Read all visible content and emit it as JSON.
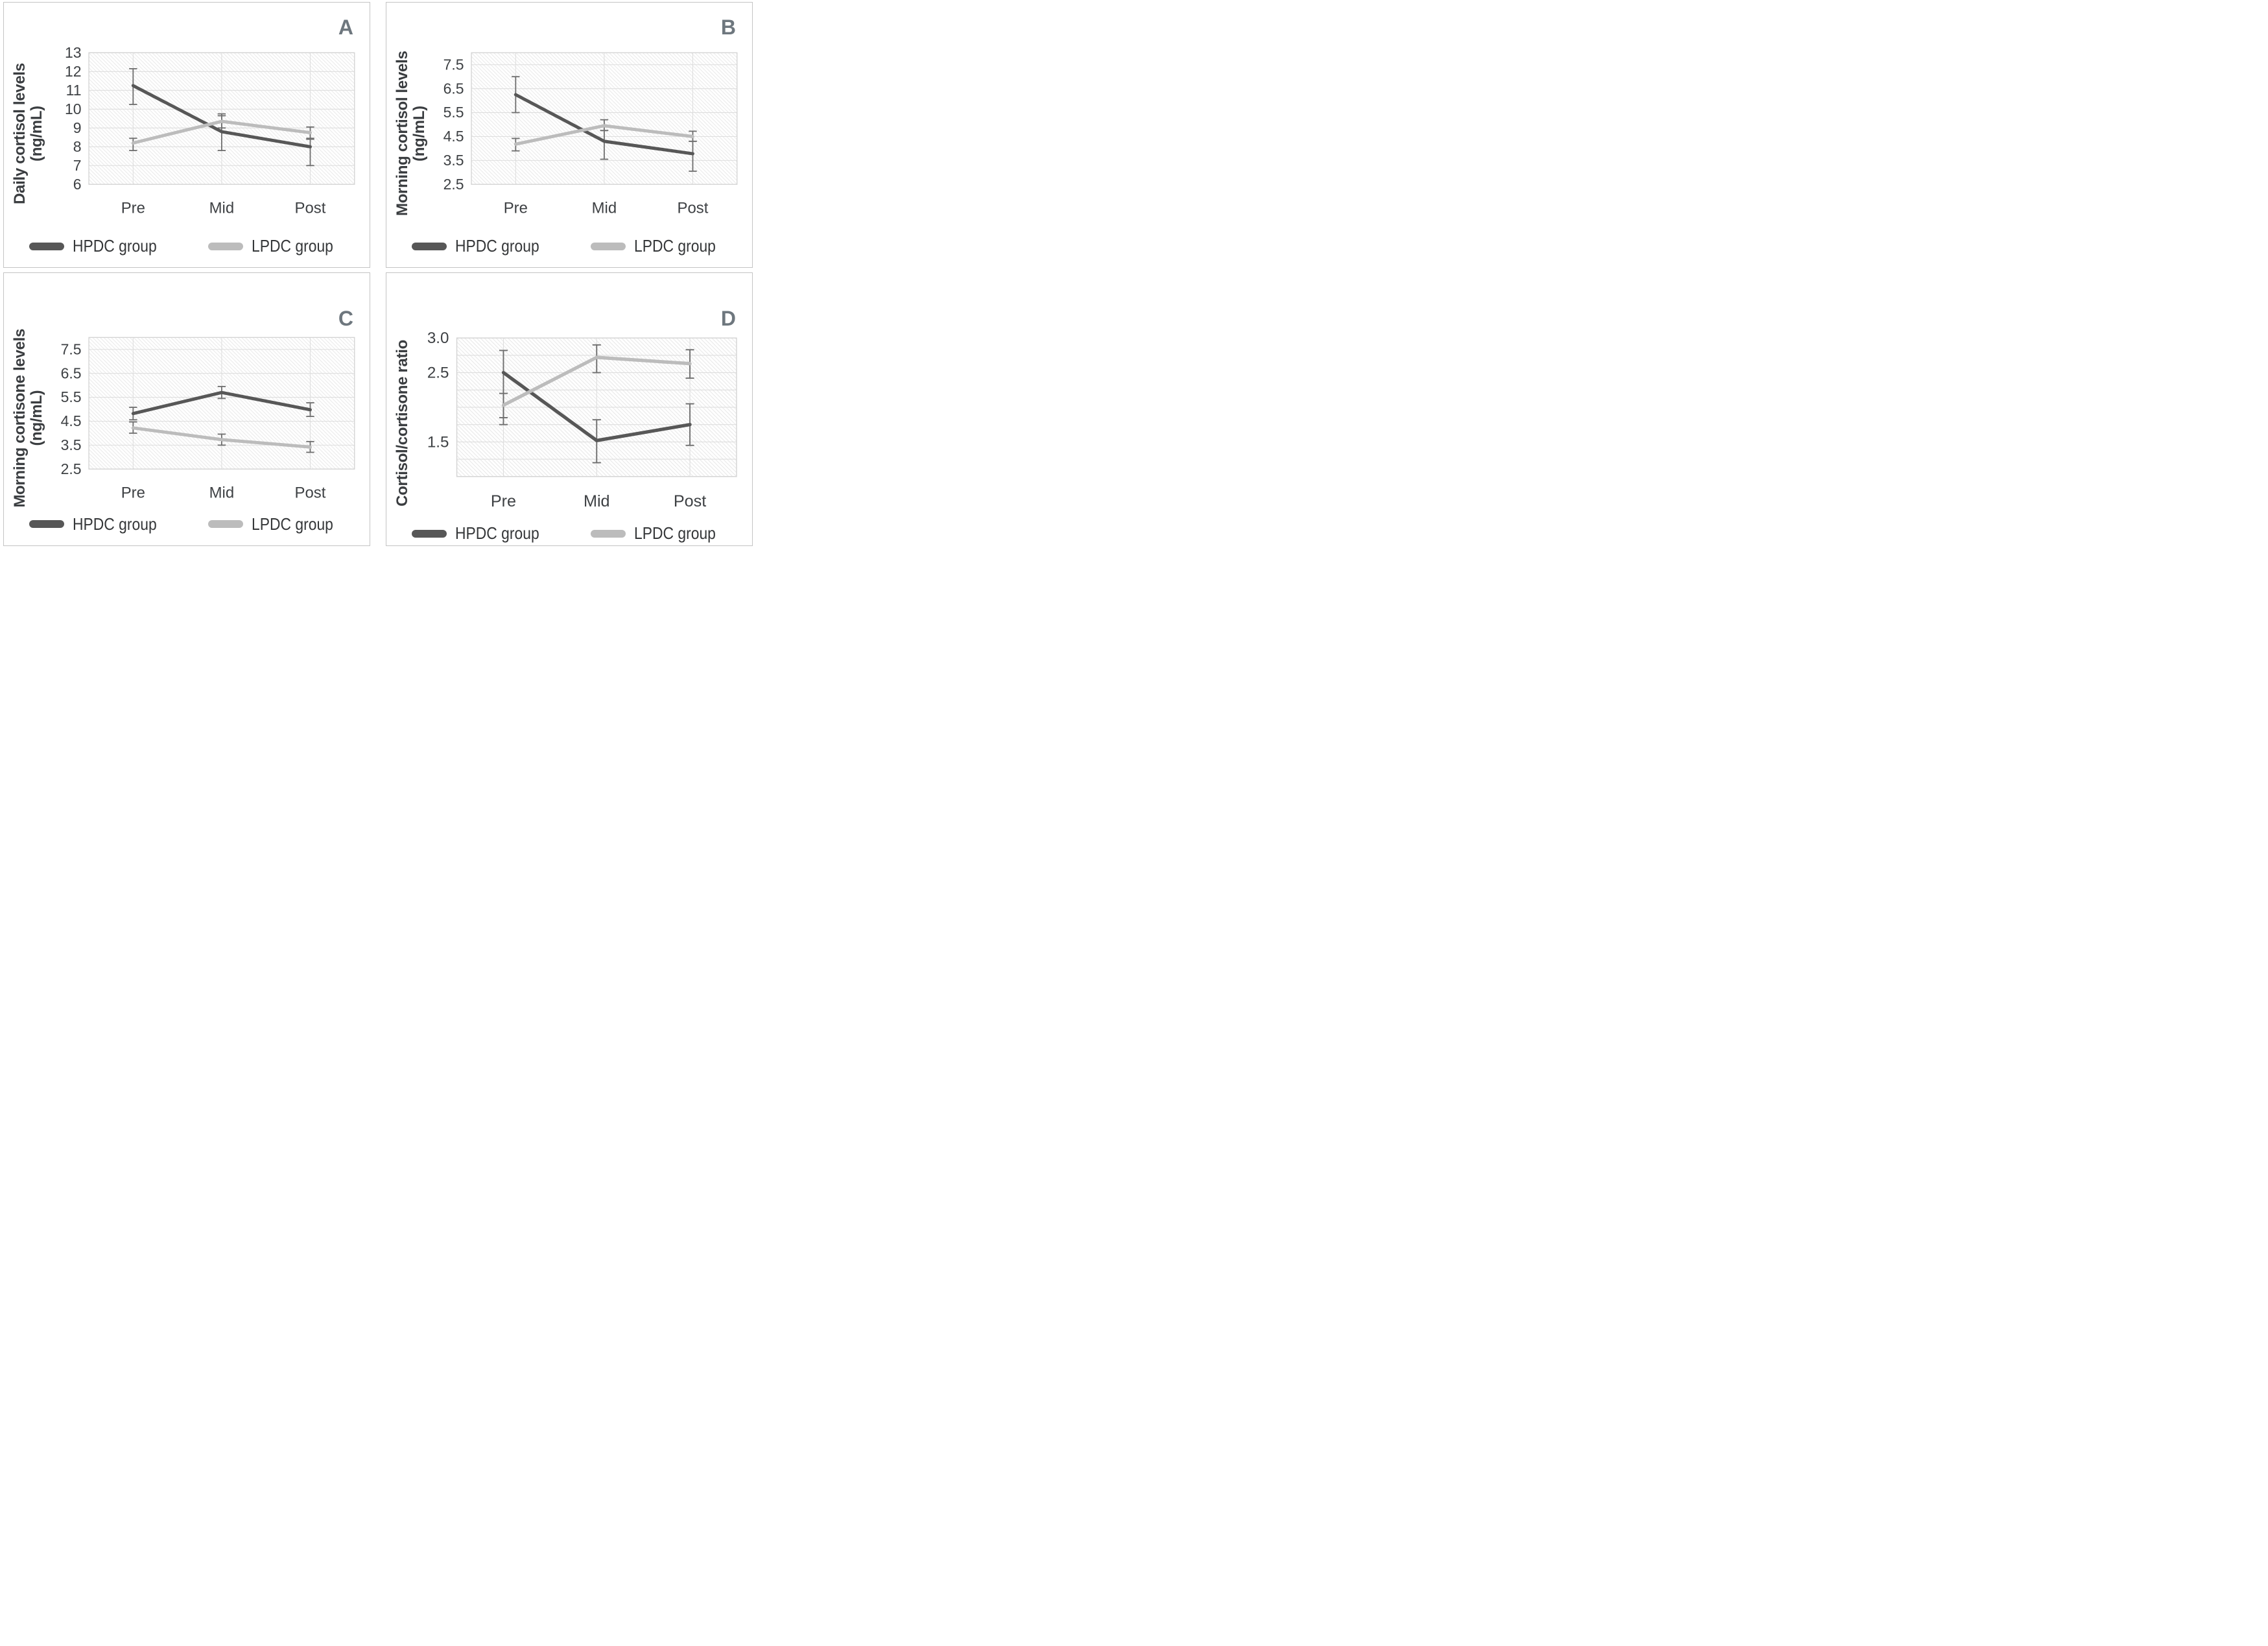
{
  "colors": {
    "hpdc_line": "#575757",
    "lpdc_line": "#bcbcbc",
    "error_bar": "#6f6f6f",
    "gridline": "#dedede",
    "plot_border": "#d4d4d4",
    "hatch_fill": "#e9e9e9",
    "axis_text": "#3e4144",
    "panel_letter": "#6e777e"
  },
  "chart_data": [
    {
      "type": "line",
      "panel_label": "A",
      "ylabel": "Daily cortisol levels (ng/mL)",
      "ylabel_display": "Daily cortisol levels (ng/mL)",
      "categories": [
        "Pre",
        "Mid",
        "Post"
      ],
      "ylim": [
        6,
        13
      ],
      "yticks": [
        "13",
        "12",
        "11",
        "10",
        "9",
        "8",
        "7",
        "6"
      ],
      "grid_step": 1,
      "grid": true,
      "legend_position": "bottom",
      "series": [
        {
          "name": "HPDC group",
          "color": "#575757",
          "values": [
            11.25,
            8.8,
            8.0
          ],
          "err_lo": [
            10.25,
            7.8,
            7.0
          ],
          "err_hi": [
            12.15,
            9.65,
            8.4
          ]
        },
        {
          "name": "LPDC group",
          "color": "#bcbcbc",
          "values": [
            8.2,
            9.35,
            8.75
          ],
          "err_lo": [
            7.8,
            9.0,
            8.45
          ],
          "err_hi": [
            8.45,
            9.75,
            9.05
          ]
        }
      ]
    },
    {
      "type": "line",
      "panel_label": "B",
      "ylabel": "Morning cortisol levels (ng/mL)",
      "ylabel_display": "Morning cortisol levels (ng/mL)",
      "categories": [
        "Pre",
        "Mid",
        "Post"
      ],
      "ylim": [
        2.5,
        8.0
      ],
      "yticks": [
        "7.5",
        "6.5",
        "5.5",
        "4.5",
        "3.5",
        "2.5"
      ],
      "grid_step": 1,
      "grid": true,
      "legend_position": "bottom",
      "series": [
        {
          "name": "HPDC group",
          "color": "#575757",
          "values": [
            6.25,
            4.3,
            3.78
          ],
          "err_lo": [
            5.5,
            3.55,
            3.05
          ],
          "err_hi": [
            7.0,
            4.75,
            4.3
          ]
        },
        {
          "name": "LPDC group",
          "color": "#bcbcbc",
          "values": [
            4.18,
            4.95,
            4.5
          ],
          "err_lo": [
            3.9,
            4.75,
            4.3
          ],
          "err_hi": [
            4.42,
            5.2,
            4.72
          ]
        }
      ]
    },
    {
      "type": "line",
      "panel_label": "C",
      "ylabel": "Morning cortisone levels (ng/mL)",
      "ylabel_display": "Morning cortisone levels\n(ng/mL)",
      "categories": [
        "Pre",
        "Mid",
        "Post"
      ],
      "ylim": [
        2.5,
        8.0
      ],
      "yticks": [
        "7.5",
        "6.5",
        "5.5",
        "4.5",
        "3.5",
        "2.5"
      ],
      "grid_step": 1,
      "grid": true,
      "legend_position": "bottom",
      "series": [
        {
          "name": "HPDC group",
          "color": "#575757",
          "values": [
            4.82,
            5.7,
            4.98
          ],
          "err_lo": [
            4.56,
            5.45,
            4.7
          ],
          "err_hi": [
            5.08,
            5.95,
            5.27
          ]
        },
        {
          "name": "LPDC group",
          "color": "#bcbcbc",
          "values": [
            4.22,
            3.73,
            3.42
          ],
          "err_lo": [
            4.0,
            3.5,
            3.2
          ],
          "err_hi": [
            4.47,
            3.96,
            3.65
          ]
        }
      ]
    },
    {
      "type": "line",
      "panel_label": "D",
      "ylabel": "Cortisol/cortisone ratio",
      "ylabel_display": "Cortisol/cortisone ratio",
      "categories": [
        "Pre",
        "Mid",
        "Post"
      ],
      "ylim": [
        1.0,
        3.0
      ],
      "yticks": [
        "3.0",
        "2.5",
        "1.5"
      ],
      "grid_step": 0.25,
      "grid": true,
      "legend_position": "bottom",
      "series": [
        {
          "name": "HPDC group",
          "color": "#575757",
          "values": [
            2.5,
            1.52,
            1.75
          ],
          "err_lo": [
            1.75,
            1.2,
            1.45
          ],
          "err_hi": [
            2.82,
            1.82,
            2.05
          ]
        },
        {
          "name": "LPDC group",
          "color": "#bcbcbc",
          "values": [
            2.03,
            2.72,
            2.63
          ],
          "err_lo": [
            1.85,
            2.5,
            2.42
          ],
          "err_hi": [
            2.2,
            2.9,
            2.83
          ]
        }
      ]
    }
  ]
}
